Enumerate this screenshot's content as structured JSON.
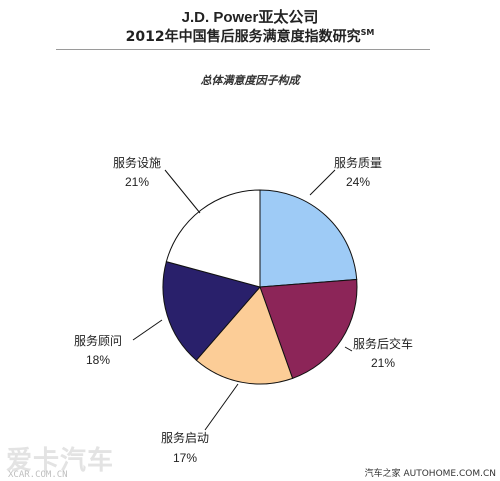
{
  "header": {
    "title_line1": "J.D. Power亚太公司",
    "title_line2": "2012年中国售后服务满意度指数研究",
    "title_sup": "SM"
  },
  "chart_data": {
    "type": "pie",
    "title": "总体满意度因子构成",
    "start_angle_deg": 90,
    "direction": "clockwise",
    "series": [
      {
        "values": [
          24,
          21,
          17,
          18,
          21
        ],
        "labels": [
          "服务质量",
          "服务后交车",
          "服务启动",
          "服务顾问",
          "服务设施"
        ],
        "value_labels": [
          "24%",
          "21%",
          "17%",
          "18%",
          "21%"
        ],
        "colors": [
          "#9ecbf6",
          "#8c2558",
          "#fccd97",
          "#29206b",
          "#ffffff"
        ]
      }
    ]
  },
  "watermark": {
    "left_text": "爱卡汽车",
    "left_url": "XCAR.COM.CN",
    "right_text": "汽车之家 AUTOHOME.COM.CN"
  }
}
